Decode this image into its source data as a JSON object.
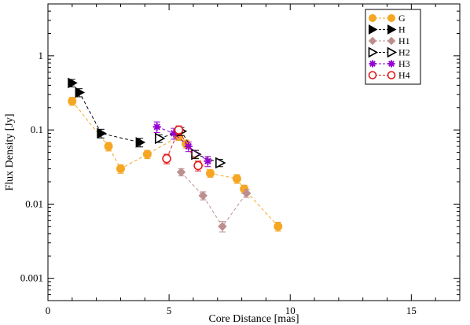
{
  "chart_data": {
    "type": "scatter",
    "xlabel": "Core Distance [mas]",
    "ylabel": "Flux Density [Jy]",
    "xlim": [
      0,
      17
    ],
    "ylim": [
      0.0005,
      5
    ],
    "y_scale": "log",
    "grid": false,
    "legend_position": "top-right",
    "x_ticks": [
      0,
      5,
      10,
      15
    ],
    "x_tick_labels": [
      "0",
      "5",
      "10",
      "15"
    ],
    "y_ticks": [
      0.001,
      0.01,
      0.1,
      1
    ],
    "y_tick_labels": [
      "0.001",
      "0.01",
      "0.1",
      "1"
    ],
    "series": [
      {
        "name": "G",
        "color": "#f5a623",
        "marker": "circle-filled",
        "line": "dashed",
        "points": [
          {
            "x": 1.0,
            "y": 0.245,
            "err": 0.03
          },
          {
            "x": 2.5,
            "y": 0.06,
            "err": 0.008
          },
          {
            "x": 3.0,
            "y": 0.03,
            "err": 0.004
          },
          {
            "x": 4.1,
            "y": 0.047,
            "err": 0.006
          },
          {
            "x": 5.4,
            "y": 0.082,
            "err": 0.01
          },
          {
            "x": 5.7,
            "y": 0.065,
            "err": 0.008
          },
          {
            "x": 6.7,
            "y": 0.026,
            "err": 0.003
          },
          {
            "x": 7.8,
            "y": 0.022,
            "err": 0.003
          },
          {
            "x": 8.1,
            "y": 0.016,
            "err": 0.002
          },
          {
            "x": 9.5,
            "y": 0.005,
            "err": 0.0007
          }
        ]
      },
      {
        "name": "H",
        "color": "#000000",
        "marker": "triangle-right-filled",
        "line": "dashed",
        "points": [
          {
            "x": 1.0,
            "y": 0.43,
            "err": 0.05
          },
          {
            "x": 1.3,
            "y": 0.32,
            "err": 0.04
          },
          {
            "x": 2.2,
            "y": 0.09,
            "err": 0.012
          },
          {
            "x": 3.8,
            "y": 0.068,
            "err": 0.009
          }
        ]
      },
      {
        "name": "H1",
        "color": "#bc8f8f",
        "marker": "diamond-filled",
        "line": "dashed",
        "points": [
          {
            "x": 5.5,
            "y": 0.027,
            "err": 0.003
          },
          {
            "x": 6.4,
            "y": 0.013,
            "err": 0.0016
          },
          {
            "x": 7.2,
            "y": 0.005,
            "err": 0.0008
          },
          {
            "x": 8.2,
            "y": 0.014,
            "err": 0.0017
          }
        ]
      },
      {
        "name": "H2",
        "color": "#000000",
        "marker": "triangle-right-open",
        "line": "dashed",
        "points": [
          {
            "x": 4.6,
            "y": 0.077,
            "err": 0.009
          },
          {
            "x": 5.5,
            "y": 0.096,
            "err": 0.012
          },
          {
            "x": 6.1,
            "y": 0.047,
            "err": 0.006
          },
          {
            "x": 7.1,
            "y": 0.036,
            "err": 0.004
          }
        ]
      },
      {
        "name": "H3",
        "color": "#9400d3",
        "marker": "star",
        "line": "dashed",
        "points": [
          {
            "x": 4.5,
            "y": 0.11,
            "err": 0.018
          },
          {
            "x": 5.2,
            "y": 0.09,
            "err": 0.015
          },
          {
            "x": 5.8,
            "y": 0.06,
            "err": 0.009
          },
          {
            "x": 6.6,
            "y": 0.038,
            "err": 0.006
          }
        ]
      },
      {
        "name": "H4",
        "color": "#e41a1c",
        "marker": "circle-open",
        "line": "dashed",
        "points": [
          {
            "x": 4.9,
            "y": 0.041,
            "err": 0.006
          },
          {
            "x": 5.4,
            "y": 0.1,
            "err": 0.013
          },
          {
            "x": 6.2,
            "y": 0.033,
            "err": 0.005
          }
        ]
      }
    ]
  }
}
